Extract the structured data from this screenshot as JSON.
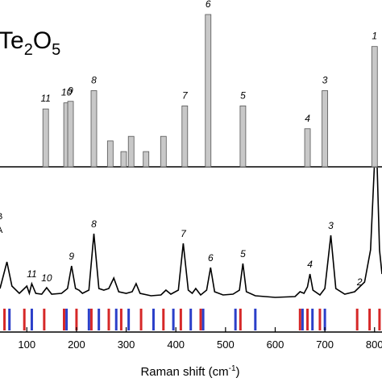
{
  "chart_data": [
    {
      "type": "bar",
      "title_parts": [
        "Te",
        "2",
        "O",
        "5"
      ],
      "x": [
        138,
        180,
        188,
        235,
        268,
        295,
        310,
        340,
        375,
        418,
        465,
        535,
        665,
        700,
        800
      ],
      "values": [
        38,
        42,
        43,
        50,
        17,
        10,
        20,
        10,
        20,
        40,
        100,
        40,
        25,
        50,
        79
      ],
      "labels": [
        "11",
        "10",
        "9",
        "8",
        null,
        null,
        null,
        null,
        null,
        "7",
        "6",
        "5",
        "4",
        "3",
        "1"
      ],
      "color": "#c8c8c8",
      "xlim": [
        46,
        815
      ],
      "ylim": [
        0,
        100
      ]
    },
    {
      "type": "line",
      "x": [
        46,
        60,
        70,
        85,
        100,
        105,
        110,
        118,
        130,
        140,
        150,
        170,
        182,
        190,
        198,
        205,
        212,
        225,
        235,
        245,
        255,
        265,
        275,
        285,
        300,
        312,
        320,
        328,
        350,
        370,
        380,
        390,
        405,
        415,
        425,
        433,
        440,
        450,
        462,
        470,
        478,
        495,
        515,
        528,
        535,
        542,
        560,
        600,
        640,
        650,
        658,
        665,
        670,
        676,
        690,
        700,
        712,
        722,
        740,
        760,
        780,
        792,
        800,
        805,
        810,
        815
      ],
      "values": [
        12,
        45,
        15,
        6,
        15,
        6,
        18,
        6,
        5,
        13,
        5,
        6,
        12,
        40,
        12,
        10,
        6,
        10,
        80,
        12,
        10,
        12,
        25,
        8,
        6,
        8,
        18,
        6,
        3,
        4,
        10,
        5,
        10,
        68,
        10,
        6,
        12,
        4,
        10,
        38,
        8,
        4,
        5,
        10,
        43,
        8,
        3,
        1,
        2,
        8,
        6,
        14,
        30,
        10,
        4,
        12,
        78,
        12,
        5,
        8,
        20,
        60,
        170,
        170,
        60,
        30
      ],
      "color": "#000000",
      "xlim": [
        46,
        815
      ],
      "ylim": [
        0,
        155
      ],
      "xticks": [
        100,
        200,
        300,
        400,
        500,
        600,
        700,
        800
      ],
      "xlabel_parts": [
        "Raman shift (cm",
        "-1",
        ")"
      ],
      "legend": [
        "B",
        "A"
      ],
      "annotations": [
        {
          "text": "11",
          "x": 110
        },
        {
          "text": "10",
          "x": 140
        },
        {
          "text": "9",
          "x": 190
        },
        {
          "text": "8",
          "x": 235
        },
        {
          "text": "7",
          "x": 415
        },
        {
          "text": "6",
          "x": 470
        },
        {
          "text": "5",
          "x": 535
        },
        {
          "text": "4",
          "x": 670
        },
        {
          "text": "3",
          "x": 712
        },
        {
          "text": "2",
          "x": 770
        }
      ],
      "red_lines": [
        55,
        95,
        135,
        175,
        200,
        230,
        265,
        290,
        330,
        375,
        410,
        450,
        530,
        650,
        665,
        690,
        765,
        790,
        810
      ],
      "blue_lines": [
        65,
        110,
        180,
        225,
        245,
        280,
        305,
        355,
        395,
        430,
        455,
        520,
        560,
        655,
        675,
        700
      ],
      "red_color": "#d62828",
      "blue_color": "#2b3fc9"
    }
  ]
}
